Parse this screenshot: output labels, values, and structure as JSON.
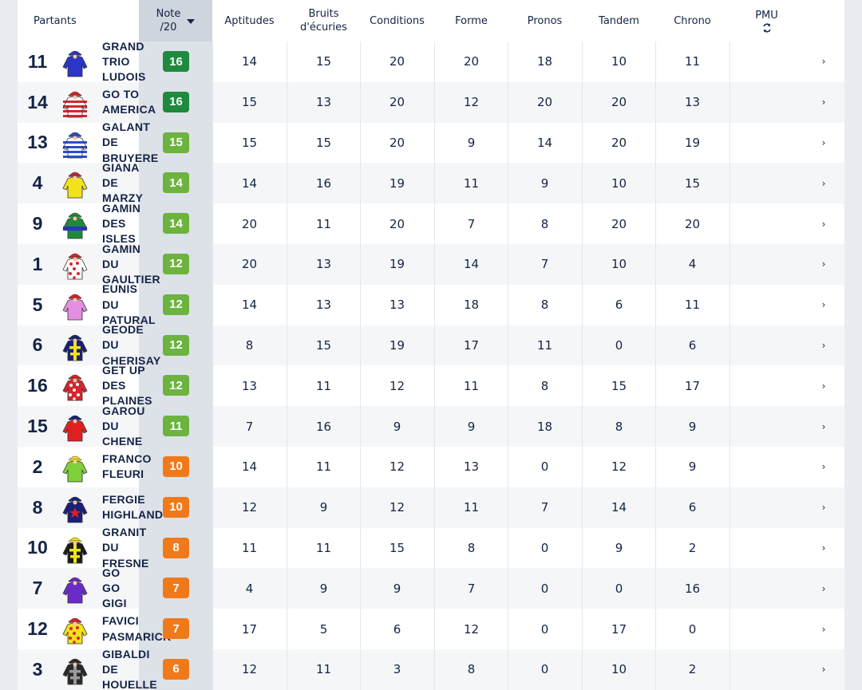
{
  "header": {
    "partants": "Partants",
    "note_line1": "Note",
    "note_line2": "/20",
    "sort_icon": "caret-down-icon",
    "columns": [
      {
        "key": "aptitudes",
        "lines": [
          "Aptitudes"
        ]
      },
      {
        "key": "bruits",
        "lines": [
          "Bruits",
          "d'écuries"
        ]
      },
      {
        "key": "conditions",
        "lines": [
          "Conditions"
        ]
      },
      {
        "key": "forme",
        "lines": [
          "Forme"
        ]
      },
      {
        "key": "pronos",
        "lines": [
          "Pronos"
        ]
      },
      {
        "key": "tandem",
        "lines": [
          "Tandem"
        ]
      },
      {
        "key": "chrono",
        "lines": [
          "Chrono"
        ]
      }
    ],
    "pmu": "PMU",
    "pmu_icon": "refresh-icon"
  },
  "rows": [
    {
      "num": "11",
      "name": [
        "GRAND",
        "TRIO",
        "LUDOIS"
      ],
      "note": "16",
      "note_color": "#1e8a3c",
      "scores": [
        "14",
        "15",
        "20",
        "20",
        "18",
        "10",
        "11"
      ],
      "silk": {
        "pattern": "plain",
        "c1": "#2b35c8",
        "c2": "#2b35c8",
        "cap": "#2b35c8"
      }
    },
    {
      "num": "14",
      "name": [
        "GO TO",
        "AMERICA"
      ],
      "note": "16",
      "note_color": "#1e8a3c",
      "scores": [
        "15",
        "13",
        "20",
        "12",
        "20",
        "20",
        "13"
      ],
      "silk": {
        "pattern": "hoops",
        "c1": "#ffffff",
        "c2": "#d6252f",
        "cap": "#d6252f"
      }
    },
    {
      "num": "13",
      "name": [
        "GALANT",
        "DE",
        "BRUYERE"
      ],
      "note": "15",
      "note_color": "#6cb33f",
      "scores": [
        "15",
        "15",
        "20",
        "9",
        "14",
        "20",
        "19"
      ],
      "silk": {
        "pattern": "hoops",
        "c1": "#ffffff",
        "c2": "#2b4fc8",
        "cap": "#2b4fc8"
      }
    },
    {
      "num": "4",
      "name": [
        "GIANA",
        "DE",
        "MARZY"
      ],
      "note": "14",
      "note_color": "#6cb33f",
      "scores": [
        "14",
        "16",
        "19",
        "11",
        "9",
        "10",
        "15"
      ],
      "silk": {
        "pattern": "plain",
        "c1": "#f2e21b",
        "c2": "#f2e21b",
        "cap": "#c0283c"
      }
    },
    {
      "num": "9",
      "name": [
        "GAMIN",
        "DES",
        "ISLES"
      ],
      "note": "14",
      "note_color": "#6cb33f",
      "scores": [
        "20",
        "11",
        "20",
        "7",
        "8",
        "20",
        "20"
      ],
      "silk": {
        "pattern": "band",
        "c1": "#1f8a3b",
        "c2": "#2b35c8",
        "cap": "#1f8a3b"
      }
    },
    {
      "num": "1",
      "name": [
        "GAMIN",
        "DU",
        "GAULTIER"
      ],
      "note": "12",
      "note_color": "#6cb33f",
      "scores": [
        "20",
        "13",
        "19",
        "14",
        "7",
        "10",
        "4"
      ],
      "silk": {
        "pattern": "dots",
        "c1": "#ffffff",
        "c2": "#d6252f",
        "cap": "#d6252f"
      }
    },
    {
      "num": "5",
      "name": [
        "EUNIS",
        "DU",
        "PATURAL"
      ],
      "note": "12",
      "note_color": "#6cb33f",
      "scores": [
        "14",
        "13",
        "13",
        "18",
        "8",
        "6",
        "11"
      ],
      "silk": {
        "pattern": "plain",
        "c1": "#e38ee0",
        "c2": "#e38ee0",
        "cap": "#d6252f"
      }
    },
    {
      "num": "6",
      "name": [
        "GEODE",
        "DU",
        "CHERISAY"
      ],
      "note": "12",
      "note_color": "#6cb33f",
      "scores": [
        "8",
        "15",
        "19",
        "17",
        "11",
        "0",
        "6"
      ],
      "silk": {
        "pattern": "cross",
        "c1": "#1a2078",
        "c2": "#f2e21b",
        "cap": "#1a2078"
      }
    },
    {
      "num": "16",
      "name": [
        "GET UP",
        "DES",
        "PLAINES"
      ],
      "note": "12",
      "note_color": "#6cb33f",
      "scores": [
        "13",
        "11",
        "12",
        "11",
        "8",
        "15",
        "17"
      ],
      "silk": {
        "pattern": "dots",
        "c1": "#d6252f",
        "c2": "#ffffff",
        "cap": "#d6252f"
      }
    },
    {
      "num": "15",
      "name": [
        "GAROU",
        "DU",
        "CHENE"
      ],
      "note": "11",
      "note_color": "#6cb33f",
      "scores": [
        "7",
        "16",
        "9",
        "9",
        "18",
        "8",
        "9"
      ],
      "silk": {
        "pattern": "plain",
        "c1": "#e02020",
        "c2": "#e02020",
        "cap": "#1a2078"
      }
    },
    {
      "num": "2",
      "name": [
        "FRANCO",
        "FLEURI"
      ],
      "note": "10",
      "note_color": "#f07a1a",
      "scores": [
        "14",
        "11",
        "12",
        "13",
        "0",
        "12",
        "9"
      ],
      "silk": {
        "pattern": "plain",
        "c1": "#7fcf3a",
        "c2": "#7fcf3a",
        "cap": "#f2e21b"
      }
    },
    {
      "num": "8",
      "name": [
        "FERGIE",
        "HIGHLAND"
      ],
      "note": "10",
      "note_color": "#f07a1a",
      "scores": [
        "12",
        "9",
        "12",
        "11",
        "7",
        "14",
        "6"
      ],
      "silk": {
        "pattern": "star",
        "c1": "#1a2078",
        "c2": "#e02020",
        "cap": "#1a2078"
      }
    },
    {
      "num": "10",
      "name": [
        "GRANIT",
        "DU",
        "FRESNE"
      ],
      "note": "8",
      "note_color": "#f07a1a",
      "scores": [
        "11",
        "11",
        "15",
        "8",
        "0",
        "9",
        "2"
      ],
      "silk": {
        "pattern": "cross",
        "c1": "#1b1b1b",
        "c2": "#f2e21b",
        "cap": "#f2e21b"
      }
    },
    {
      "num": "7",
      "name": [
        "GO",
        "GO",
        "GIGI"
      ],
      "note": "7",
      "note_color": "#f07a1a",
      "scores": [
        "4",
        "9",
        "9",
        "7",
        "0",
        "0",
        "16"
      ],
      "silk": {
        "pattern": "plain",
        "c1": "#6b2bc8",
        "c2": "#6b2bc8",
        "cap": "#6b2bc8"
      }
    },
    {
      "num": "12",
      "name": [
        "FAVICI",
        "PASMARICK"
      ],
      "note": "7",
      "note_color": "#f07a1a",
      "scores": [
        "17",
        "5",
        "6",
        "12",
        "0",
        "17",
        "0"
      ],
      "silk": {
        "pattern": "dots",
        "c1": "#f2e21b",
        "c2": "#d6252f",
        "cap": "#d6252f"
      }
    },
    {
      "num": "3",
      "name": [
        "GIBALDI",
        "DE",
        "HOUELLE"
      ],
      "note": "6",
      "note_color": "#f07a1a",
      "scores": [
        "12",
        "11",
        "3",
        "8",
        "0",
        "10",
        "2"
      ],
      "silk": {
        "pattern": "cross",
        "c1": "#2a2a2a",
        "c2": "#9a9a9a",
        "cap": "#2a2a2a"
      }
    }
  ],
  "row_arrow": "›"
}
